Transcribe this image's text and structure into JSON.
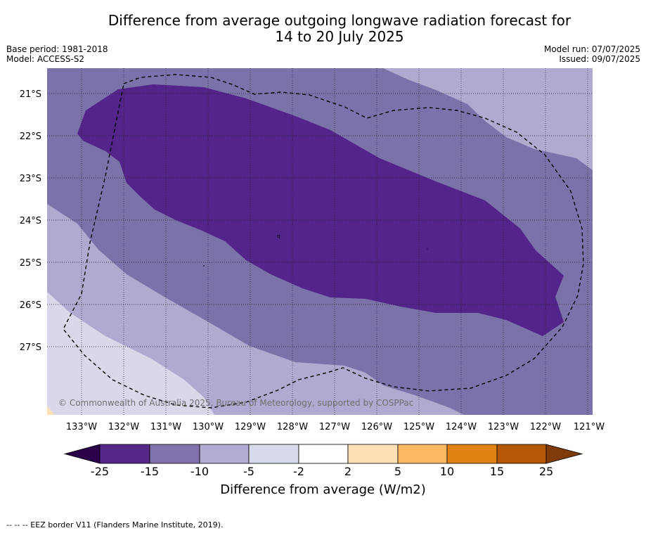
{
  "title_line1": "Difference from average outgoing longwave radiation forecast for",
  "title_line2": "14 to 20 July 2025",
  "meta": {
    "base_period": "Base period: 1981-2018",
    "model": "Model: ACCESS-S2",
    "model_run": "Model run: 07/07/2025",
    "issued": "Issued: 09/07/2025"
  },
  "map": {
    "lat_labels": [
      "21°S",
      "22°S",
      "23°S",
      "24°S",
      "25°S",
      "26°S",
      "27°S"
    ],
    "lon_labels": [
      "133°W",
      "132°W",
      "131°W",
      "130°W",
      "129°W",
      "128°W",
      "127°W",
      "126°W",
      "125°W",
      "124°W",
      "123°W",
      "122°W",
      "121°W"
    ],
    "copyright": "© Commonwealth of Australia 2025, Bureau of Meteorology, supported by COSPPac",
    "colors": {
      "c_minus15_minus10": "#7b72aa",
      "c_minus10_minus5": "#b0aad0",
      "c_minus5_minus2": "#d9d8ea",
      "c_minus25_minus15": "#53248a",
      "c_2_5": "#fde0b6"
    }
  },
  "colorbar": {
    "ticks": [
      "-25",
      "-15",
      "-10",
      "-5",
      "-2",
      "2",
      "5",
      "10",
      "15",
      "25"
    ],
    "colors": [
      "#2d004b",
      "#542788",
      "#8073ac",
      "#b2abd2",
      "#d8daeb",
      "#ffffff",
      "#fee0b6",
      "#fdb863",
      "#e08214",
      "#b35806",
      "#7f3b08"
    ],
    "label": "Difference from average (W/m2)"
  },
  "footer": "--  --  -- EEZ border V11 (Flanders Marine Institute, 2019)."
}
